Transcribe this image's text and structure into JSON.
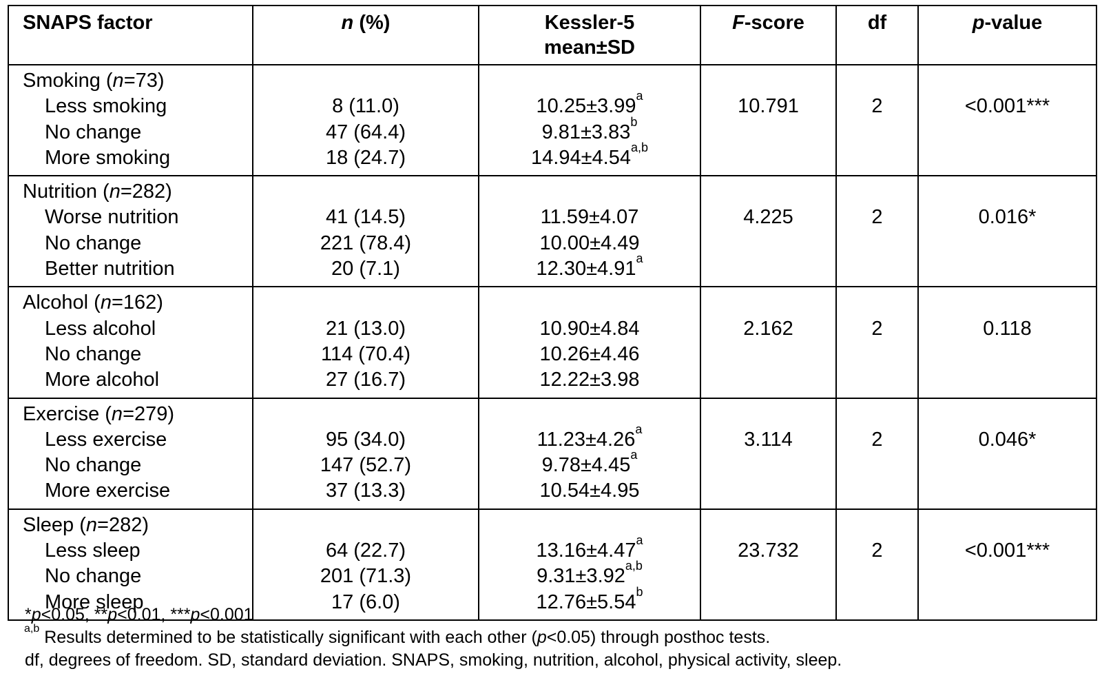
{
  "table": {
    "headers": {
      "factor": "SNAPS factor",
      "n_ital": "n",
      "n_rest": " (%)",
      "kessler_line1": "Kessler-5",
      "kessler_line2": "mean±SD",
      "f_ital": "F",
      "f_rest": "-score",
      "df": "df",
      "p_ital": "p",
      "p_rest": "-value"
    },
    "groups": [
      {
        "name": "Smoking (",
        "n_label": "n",
        "n_value": "=73)",
        "f_score": "10.791",
        "df": "2",
        "p_value": "<0.001***",
        "rows": [
          {
            "label": "Less smoking",
            "n": "8 (11.0)",
            "mean_sd": "10.25±3.99",
            "sup": "a"
          },
          {
            "label": "No change",
            "n": "47 (64.4)",
            "mean_sd": "9.81±3.83",
            "sup": "b"
          },
          {
            "label": "More smoking",
            "n": "18 (24.7)",
            "mean_sd": "14.94±4.54",
            "sup": "a,b"
          }
        ]
      },
      {
        "name": "Nutrition (",
        "n_label": "n",
        "n_value": "=282)",
        "f_score": "4.225",
        "df": "2",
        "p_value": "0.016*",
        "rows": [
          {
            "label": "Worse nutrition",
            "n": "41 (14.5)",
            "mean_sd": "11.59±4.07",
            "sup": ""
          },
          {
            "label": "No change",
            "n": "221 (78.4)",
            "mean_sd": "10.00±4.49",
            "sup": ""
          },
          {
            "label": "Better nutrition",
            "n": "20 (7.1)",
            "mean_sd": "12.30±4.91",
            "sup": "a"
          }
        ]
      },
      {
        "name": "Alcohol (",
        "n_label": "n",
        "n_value": "=162)",
        "f_score": "2.162",
        "df": "2",
        "p_value": "0.118",
        "rows": [
          {
            "label": "Less alcohol",
            "n": "21 (13.0)",
            "mean_sd": "10.90±4.84",
            "sup": ""
          },
          {
            "label": "No change",
            "n": "114 (70.4)",
            "mean_sd": "10.26±4.46",
            "sup": ""
          },
          {
            "label": "More alcohol",
            "n": "27 (16.7)",
            "mean_sd": "12.22±3.98",
            "sup": ""
          }
        ]
      },
      {
        "name": "Exercise (",
        "n_label": "n",
        "n_value": "=279)",
        "f_score": "3.114",
        "df": "2",
        "p_value": "0.046*",
        "rows": [
          {
            "label": "Less exercise",
            "n": "95 (34.0)",
            "mean_sd": "11.23±4.26",
            "sup": "a"
          },
          {
            "label": "No change",
            "n": "147 (52.7)",
            "mean_sd": "9.78±4.45",
            "sup": "a"
          },
          {
            "label": "More exercise",
            "n": "37 (13.3)",
            "mean_sd": "10.54±4.95",
            "sup": ""
          }
        ]
      },
      {
        "name": "Sleep (",
        "n_label": "n",
        "n_value": "=282)",
        "f_score": "23.732",
        "df": "2",
        "p_value": "<0.001***",
        "rows": [
          {
            "label": "Less sleep",
            "n": "64 (22.7)",
            "mean_sd": "13.16±4.47",
            "sup": "a"
          },
          {
            "label": "No change",
            "n": "201 (71.3)",
            "mean_sd": "9.31±3.92",
            "sup": "a,b"
          },
          {
            "label": "More sleep",
            "n": "17 (6.0)",
            "mean_sd": "12.76±5.54",
            "sup": "b"
          }
        ]
      }
    ]
  },
  "notes": {
    "sig": [
      {
        "pre": "*",
        "ital": "p",
        "post": "<0.05, "
      },
      {
        "pre": "**",
        "ital": "p",
        "post": "<0.01, "
      },
      {
        "pre": "***",
        "ital": "p",
        "post": "<0.001"
      }
    ],
    "posthoc_sup": "a,b",
    "posthoc_pre": " Results determined to be statistically significant with each other (",
    "posthoc_ital": "p",
    "posthoc_post": "<0.05) through posthoc tests.",
    "abbrev": "df, degrees of freedom. SD, standard deviation. SNAPS, smoking, nutrition, alcohol, physical activity, sleep."
  }
}
